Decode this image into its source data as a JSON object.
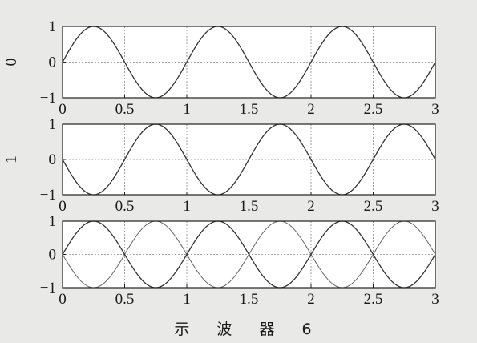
{
  "caption": "示 波 器 6",
  "colors": {
    "background": "#e9e9e7",
    "plot_area": "#ffffff",
    "trace": "#333333",
    "grid": "#888888"
  },
  "chart_data": [
    {
      "type": "line",
      "ylabel": "0",
      "xlim": [
        0,
        3
      ],
      "ylim": [
        -1,
        1
      ],
      "xticks": [
        "0",
        "0.5",
        "1",
        "1.5",
        "2",
        "2.5",
        "3"
      ],
      "yticks": [
        "1",
        "0",
        "−1"
      ],
      "grid": true,
      "series": [
        {
          "function": "sin(2πt)",
          "x": [
            0,
            0.25,
            0.5,
            0.75,
            1,
            1.25,
            1.5,
            1.75,
            2,
            2.25,
            2.5,
            2.75,
            3
          ],
          "y": [
            0,
            1,
            0,
            -1,
            0,
            1,
            0,
            -1,
            0,
            1,
            0,
            -1,
            0
          ]
        }
      ]
    },
    {
      "type": "line",
      "ylabel": "1",
      "xlim": [
        0,
        3
      ],
      "ylim": [
        -1,
        1
      ],
      "xticks": [
        "0",
        "0.5",
        "1",
        "1.5",
        "2",
        "2.5",
        "3"
      ],
      "yticks": [
        "1",
        "0",
        "−1"
      ],
      "grid": true,
      "series": [
        {
          "function": "-sin(2πt)",
          "x": [
            0,
            0.25,
            0.5,
            0.75,
            1,
            1.25,
            1.5,
            1.75,
            2,
            2.25,
            2.5,
            2.75,
            3
          ],
          "y": [
            0,
            -1,
            0,
            1,
            0,
            -1,
            0,
            1,
            0,
            -1,
            0,
            1,
            0
          ]
        }
      ]
    },
    {
      "type": "line",
      "ylabel": "",
      "xlim": [
        0,
        3
      ],
      "ylim": [
        -1,
        1
      ],
      "xticks": [
        "0",
        "0.5",
        "1",
        "1.5",
        "2",
        "2.5",
        "3"
      ],
      "yticks": [
        "1",
        "0",
        "−1"
      ],
      "grid": true,
      "series": [
        {
          "function": "sin(2πt)",
          "x": [
            0,
            0.25,
            0.5,
            0.75,
            1,
            1.25,
            1.5,
            1.75,
            2,
            2.25,
            2.5,
            2.75,
            3
          ],
          "y": [
            0,
            1,
            0,
            -1,
            0,
            1,
            0,
            -1,
            0,
            1,
            0,
            -1,
            0
          ]
        },
        {
          "function": "-sin(2πt)",
          "x": [
            0,
            0.25,
            0.5,
            0.75,
            1,
            1.25,
            1.5,
            1.75,
            2,
            2.25,
            2.5,
            2.75,
            3
          ],
          "y": [
            0,
            -1,
            0,
            1,
            0,
            -1,
            0,
            1,
            0,
            -1,
            0,
            1,
            0
          ]
        }
      ]
    }
  ]
}
